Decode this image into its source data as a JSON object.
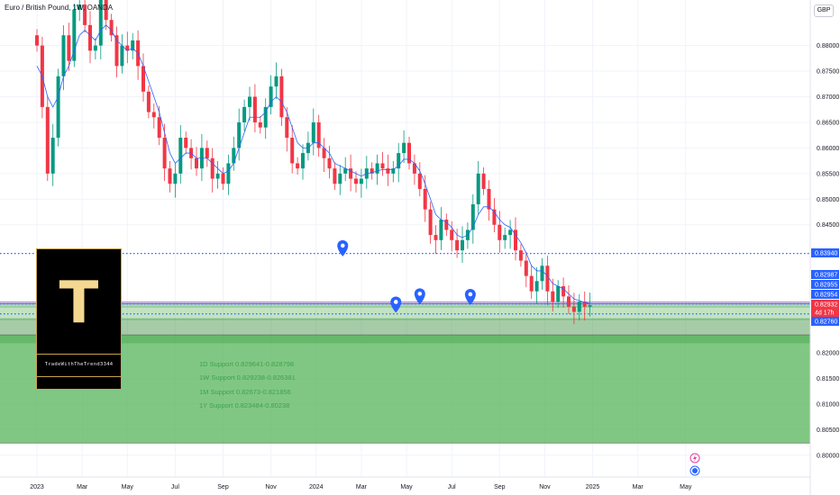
{
  "header": {
    "title": "Euro / British Pound, 1W, OANDA",
    "currency": "GBP"
  },
  "chart_data": {
    "type": "candlestick",
    "symbol": "Euro / British Pound",
    "interval": "1W",
    "source": "OANDA",
    "ylim": [
      0.7975,
      0.8845
    ],
    "y_ticks": [
      "0.88000",
      "0.87500",
      "0.87000",
      "0.86500",
      "0.86000",
      "0.85500",
      "0.85000",
      "0.84500",
      "0.82000",
      "0.81500",
      "0.81000",
      "0.80500",
      "0.80000"
    ],
    "x_ticks": [
      {
        "label": "2023",
        "week": 0
      },
      {
        "label": "Mar",
        "week": 8.5
      },
      {
        "label": "May",
        "week": 17
      },
      {
        "label": "Jul",
        "week": 26
      },
      {
        "label": "Sep",
        "week": 35
      },
      {
        "label": "Nov",
        "week": 44
      },
      {
        "label": "2024",
        "week": 52.5
      },
      {
        "label": "Mar",
        "week": 61
      },
      {
        "label": "May",
        "week": 69.5
      },
      {
        "label": "Jul",
        "week": 78
      },
      {
        "label": "Sep",
        "week": 87
      },
      {
        "label": "Nov",
        "week": 95.5
      },
      {
        "label": "2025",
        "week": 104.5
      },
      {
        "label": "Mar",
        "week": 113
      },
      {
        "label": "May",
        "week": 122
      }
    ],
    "price_labels": [
      {
        "value": "0.83940",
        "color": "#2962ff"
      },
      {
        "value": "0.82987",
        "color": "#2962ff"
      },
      {
        "value": "0.82955",
        "color": "#2962ff"
      },
      {
        "value": "0.82954",
        "color": "#2962ff"
      },
      {
        "value": "0.82932",
        "color": "#f23645"
      },
      {
        "value": "4d 17h",
        "color": "#f23645"
      },
      {
        "value": "0.82760",
        "color": "#2962ff"
      }
    ],
    "levels": [
      {
        "value": 0.8394,
        "style": "dotted",
        "color": "#2962ff"
      },
      {
        "value": 0.82987,
        "style": "solid",
        "color": "#7e57c2"
      },
      {
        "value": 0.82955,
        "style": "solid",
        "color": "#7e57c2"
      },
      {
        "value": 0.82954,
        "style": "dotted",
        "color": "#2962ff"
      },
      {
        "value": 0.8276,
        "style": "dotted",
        "color": "#2962ff"
      }
    ],
    "zones": [
      {
        "name": "1D Support",
        "from": 0.829641,
        "to": 0.828798
      },
      {
        "name": "1W Support",
        "from": 0.829238,
        "to": 0.826381
      },
      {
        "name": "1M Support",
        "from": 0.82673,
        "to": 0.821856
      },
      {
        "name": "1Y Support",
        "from": 0.823484,
        "to": 0.80238
      }
    ],
    "zone_labels": [
      "1D Support 0.829641-0.828798",
      "1W Support 0.829238-0.826381",
      "1M Support 0.82673-0.821856",
      "1Y Support 0.823484-0.80238"
    ],
    "markers": [
      {
        "week": 57.5,
        "value": 0.8397
      },
      {
        "week": 72,
        "value": 0.8303
      },
      {
        "week": 81.5,
        "value": 0.8302
      },
      {
        "week": 67.5,
        "value": 0.8287
      }
    ],
    "closes": [
      0.88,
      0.868,
      0.855,
      0.862,
      0.874,
      0.882,
      0.877,
      0.887,
      0.888,
      0.884,
      0.879,
      0.88,
      0.889,
      0.885,
      0.882,
      0.876,
      0.88,
      0.879,
      0.881,
      0.876,
      0.871,
      0.867,
      0.866,
      0.862,
      0.856,
      0.853,
      0.855,
      0.862,
      0.86,
      0.858,
      0.856,
      0.86,
      0.858,
      0.854,
      0.855,
      0.853,
      0.857,
      0.86,
      0.865,
      0.868,
      0.87,
      0.865,
      0.864,
      0.868,
      0.872,
      0.874,
      0.866,
      0.862,
      0.857,
      0.856,
      0.859,
      0.861,
      0.865,
      0.86,
      0.858,
      0.856,
      0.853,
      0.855,
      0.856,
      0.854,
      0.853,
      0.854,
      0.856,
      0.855,
      0.857,
      0.856,
      0.855,
      0.856,
      0.859,
      0.861,
      0.857,
      0.855,
      0.852,
      0.848,
      0.843,
      0.842,
      0.846,
      0.844,
      0.842,
      0.84,
      0.842,
      0.844,
      0.849,
      0.855,
      0.852,
      0.848,
      0.845,
      0.842,
      0.843,
      0.844,
      0.84,
      0.838,
      0.835,
      0.832,
      0.834,
      0.837,
      0.832,
      0.83,
      0.833,
      0.831,
      0.829,
      0.828,
      0.83,
      0.829,
      0.8293
    ],
    "ma": [
      0.876,
      0.874,
      0.87,
      0.868,
      0.87,
      0.874,
      0.876,
      0.879,
      0.882,
      0.883,
      0.882,
      0.881,
      0.883,
      0.884,
      0.883,
      0.881,
      0.88,
      0.879,
      0.8795,
      0.8785,
      0.876,
      0.873,
      0.87,
      0.867,
      0.863,
      0.859,
      0.857,
      0.858,
      0.859,
      0.859,
      0.858,
      0.858,
      0.858,
      0.857,
      0.856,
      0.855,
      0.8555,
      0.857,
      0.86,
      0.863,
      0.866,
      0.866,
      0.866,
      0.867,
      0.869,
      0.87,
      0.869,
      0.867,
      0.864,
      0.861,
      0.86,
      0.86,
      0.861,
      0.861,
      0.86,
      0.859,
      0.857,
      0.8565,
      0.856,
      0.8555,
      0.855,
      0.8545,
      0.855,
      0.8552,
      0.8555,
      0.8558,
      0.8558,
      0.8558,
      0.8565,
      0.8578,
      0.8578,
      0.857,
      0.8555,
      0.853,
      0.85,
      0.847,
      0.846,
      0.8455,
      0.8445,
      0.843,
      0.8425,
      0.843,
      0.8445,
      0.847,
      0.8485,
      0.8485,
      0.8475,
      0.846,
      0.845,
      0.8445,
      0.843,
      0.8415,
      0.8395,
      0.837,
      0.836,
      0.836,
      0.835,
      0.8335,
      0.833,
      0.8325,
      0.8315,
      0.8305,
      0.8302,
      0.8298,
      0.8296
    ]
  },
  "branding": {
    "logo_letter": "T",
    "logo_text": "TradeWithTheTrend3344"
  },
  "footer_icons": [
    "flash-icon",
    "globe-icon"
  ]
}
